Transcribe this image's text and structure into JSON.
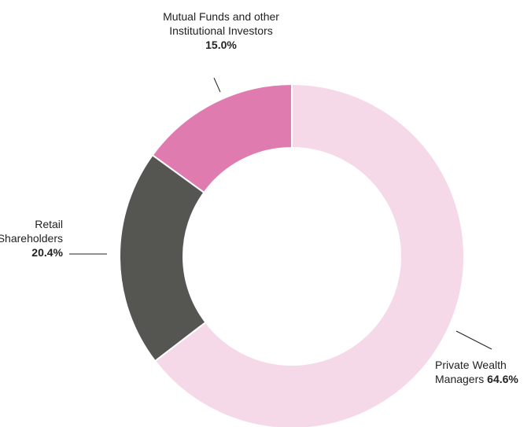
{
  "chart_data": {
    "type": "donut",
    "categories": [
      "Private Wealth Managers",
      "Retail Shareholders",
      "Mutual Funds and other Institutional Investors"
    ],
    "values": [
      64.6,
      20.4,
      15.0
    ],
    "value_labels": [
      "64.6%",
      "20.4%",
      "15.0%"
    ],
    "colors": [
      "#f5d9e8",
      "#555552",
      "#e07bb0"
    ]
  }
}
